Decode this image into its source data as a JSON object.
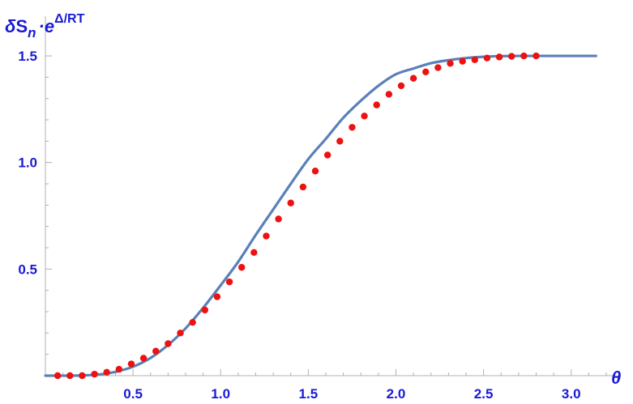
{
  "chart_data": {
    "type": "line",
    "title": "",
    "ylabel_parts": {
      "delta": "δ",
      "base": "S",
      "subscript": "n",
      "dot": "·",
      "exp_base": "e",
      "exponent": "Δ/RT"
    },
    "xlabel": "θ",
    "xlim": [
      0,
      3.2
    ],
    "ylim": [
      0,
      1.58
    ],
    "x_ticks": [
      0.5,
      1.0,
      1.5,
      2.0,
      2.5,
      3.0
    ],
    "x_tick_labels": [
      "0.5",
      "1.0",
      "1.5",
      "2.0",
      "2.5",
      "3.0"
    ],
    "y_ticks": [
      0.5,
      1.0,
      1.5
    ],
    "y_tick_labels": [
      "0.5",
      "1.0",
      "1.5"
    ],
    "grid": false,
    "colors": {
      "axis_text": "#1a1ad6",
      "axis_line": "#b0b0b0",
      "curve": "#5a80b8",
      "points": "#ee1111"
    },
    "series": [
      {
        "type": "line",
        "x": [
          0.0,
          0.1,
          0.2,
          0.3,
          0.4,
          0.5,
          0.6,
          0.7,
          0.8,
          0.9,
          1.0,
          1.1,
          1.2,
          1.3,
          1.4,
          1.5,
          1.6,
          1.7,
          1.8,
          1.9,
          2.0,
          2.1,
          2.2,
          2.3,
          2.4,
          2.5,
          2.6,
          2.7,
          2.8,
          2.9,
          3.0,
          3.1,
          3.1416
        ],
        "y": [
          0.0,
          0.0,
          0.001,
          0.005,
          0.018,
          0.042,
          0.083,
          0.144,
          0.222,
          0.318,
          0.424,
          0.534,
          0.66,
          0.78,
          0.9,
          1.016,
          1.111,
          1.21,
          1.29,
          1.36,
          1.414,
          1.441,
          1.466,
          1.48,
          1.49,
          1.496,
          1.499,
          1.5,
          1.5,
          1.5,
          1.5,
          1.5,
          1.5
        ]
      },
      {
        "type": "scatter",
        "x": [
          0.07,
          0.14,
          0.21,
          0.28,
          0.35,
          0.42,
          0.49,
          0.56,
          0.63,
          0.7,
          0.77,
          0.84,
          0.91,
          0.98,
          1.05,
          1.12,
          1.19,
          1.26,
          1.33,
          1.4,
          1.47,
          1.54,
          1.61,
          1.68,
          1.75,
          1.82,
          1.89,
          1.96,
          2.03,
          2.1,
          2.17,
          2.24,
          2.31,
          2.38,
          2.45,
          2.52,
          2.59,
          2.66,
          2.73,
          2.8
        ],
        "y": [
          0.0,
          0.0,
          0.0,
          0.007,
          0.016,
          0.03,
          0.055,
          0.082,
          0.115,
          0.15,
          0.2,
          0.25,
          0.308,
          0.37,
          0.44,
          0.508,
          0.578,
          0.655,
          0.735,
          0.81,
          0.885,
          0.96,
          1.035,
          1.1,
          1.165,
          1.218,
          1.27,
          1.32,
          1.36,
          1.395,
          1.425,
          1.445,
          1.465,
          1.475,
          1.482,
          1.49,
          1.495,
          1.498,
          1.5,
          1.5
        ]
      }
    ]
  }
}
